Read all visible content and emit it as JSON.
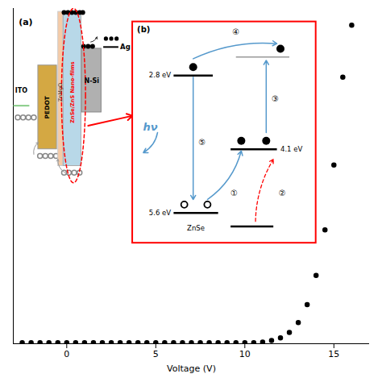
{
  "chart_data": {
    "type": "scatter",
    "xlabel": "Voltage (V)",
    "x": [
      -2.5,
      -2.0,
      -1.5,
      -1.0,
      -0.5,
      0.0,
      0.5,
      1.0,
      1.5,
      2.0,
      2.5,
      3.0,
      3.5,
      4.0,
      4.5,
      5.0,
      5.5,
      6.0,
      6.5,
      7.0,
      7.5,
      8.0,
      8.5,
      9.0,
      9.5,
      10.0,
      10.5,
      11.0,
      11.5,
      12.0,
      12.5,
      13.0,
      13.5,
      14.0,
      14.5,
      15.0,
      15.5,
      16.0
    ],
    "values": [
      0.0290816326530612,
      0.0290816326530612,
      0.0290816326530612,
      0.0290816326530612,
      0.0290816326530612,
      0.0290816326530612,
      0.0290816326530612,
      0.0290816326530612,
      0.0290816326530612,
      0.0290816326530612,
      0.0290816326530612,
      0.0290816326530612,
      0.0290816326530612,
      0.0290816326530612,
      0.0290816326530612,
      0.0290816326530612,
      0.0290816326530612,
      0.0290816326530612,
      0.0290816326530612,
      0.0290816326530612,
      0.0290816326530612,
      0.0290816326530612,
      0.0290816326530612,
      0.0290816326530612,
      0.0290816326530612,
      0.0290816326530612,
      0.0290816326530612,
      0.048469387755102,
      0.0969387755102041,
      0.174489795918367,
      0.339285714285714,
      0.630102040816327,
      1.16326530612245,
      2.03571428571429,
      3.39285714285714,
      5.33163265306122,
      7.94897959183673,
      9.5
    ],
    "color": "#000000",
    "marker": "circle",
    "xlim": [
      -3,
      17
    ],
    "ylim": [
      0,
      10
    ],
    "xticks": [
      0,
      5,
      10,
      15
    ],
    "tick_labels": "x",
    "annotations": [
      "(a)",
      "ITO",
      "PEDOT",
      "ZnMgO",
      "ZnSe/ZnS Nano-films",
      "N-Si",
      "Ag",
      "(b)",
      "2.8 eV",
      "4.1 eV",
      "5.6 eV",
      "ZnSe",
      "hν",
      "①",
      "②",
      "③",
      "④",
      "⑤"
    ]
  }
}
